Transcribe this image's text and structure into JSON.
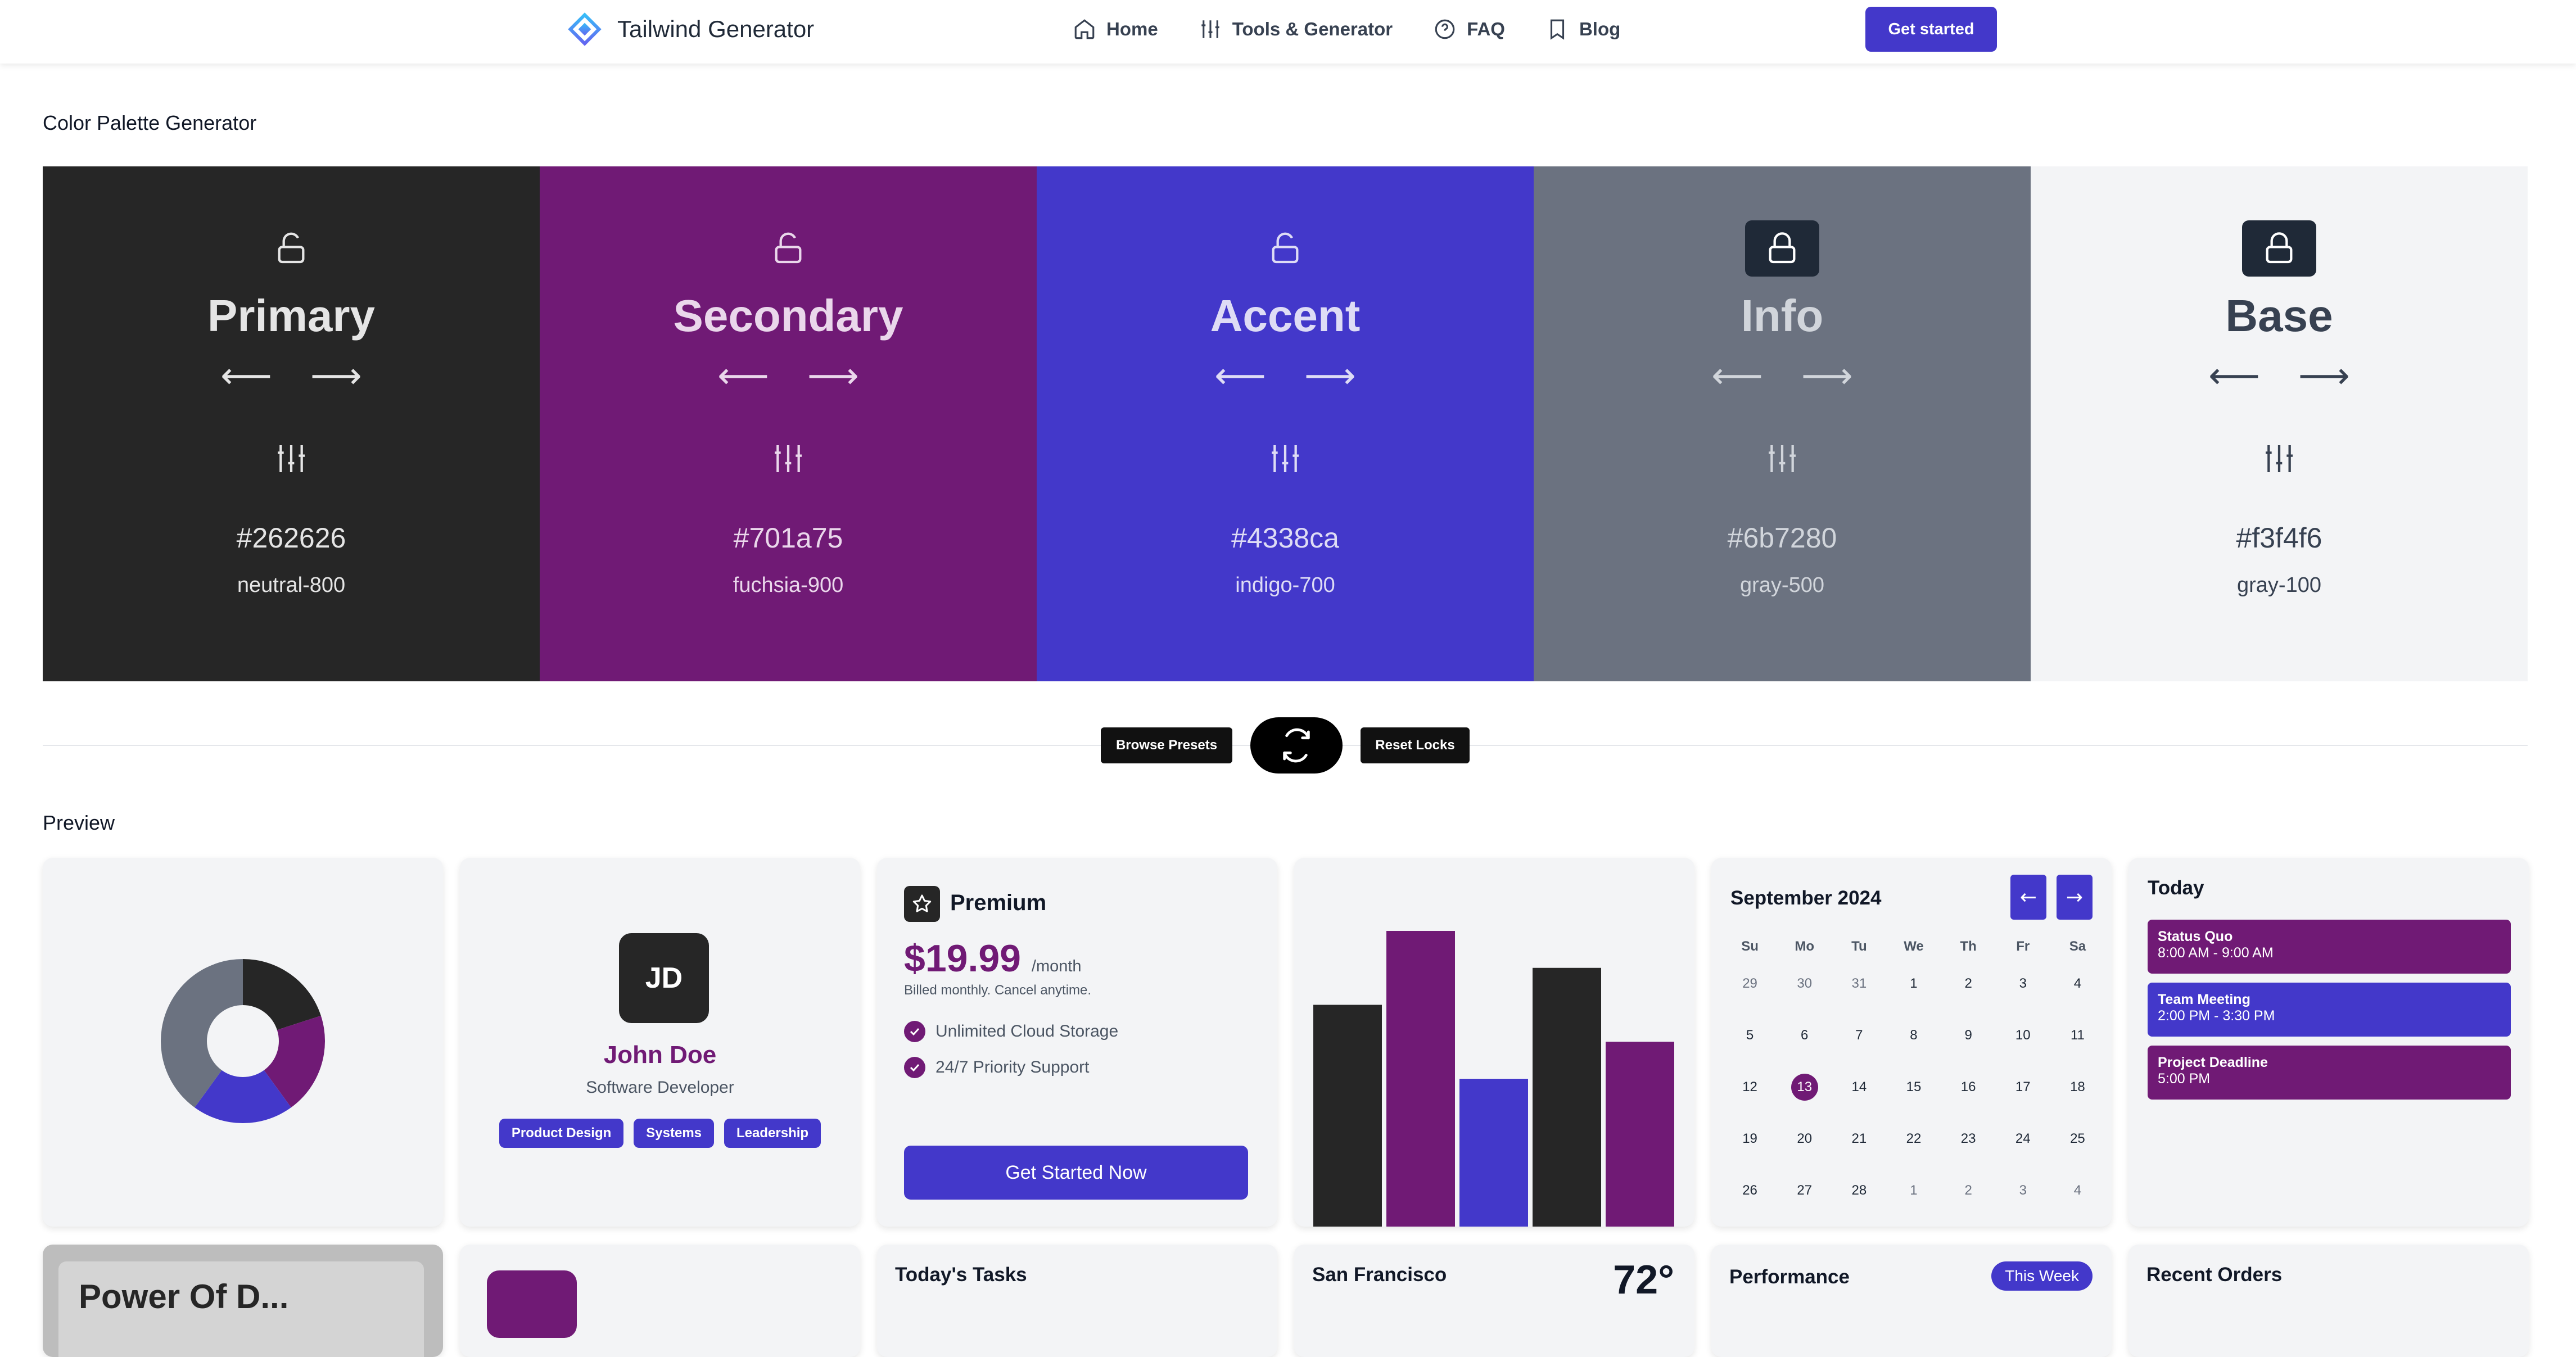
{
  "nav": {
    "brand": "Tailwind Generator",
    "links": [
      "Home",
      "Tools & Generator",
      "FAQ",
      "Blog"
    ],
    "cta": "Get started"
  },
  "palette_section": {
    "title": "Color Palette Generator",
    "swatches": [
      {
        "name": "Primary",
        "hex": "#262626",
        "tw": "neutral-800",
        "bg": "#262626",
        "fg": "#e5e5e5",
        "locked": false
      },
      {
        "name": "Secondary",
        "hex": "#701a75",
        "tw": "fuchsia-900",
        "bg": "#701a75",
        "fg": "#ead7eb",
        "locked": false
      },
      {
        "name": "Accent",
        "hex": "#4338ca",
        "tw": "indigo-700",
        "bg": "#4338ca",
        "fg": "#dedcf5",
        "locked": false
      },
      {
        "name": "Info",
        "hex": "#6b7280",
        "tw": "gray-500",
        "bg": "#6b7280",
        "fg": "#d1d5db",
        "locked": true
      },
      {
        "name": "Base",
        "hex": "#f3f4f6",
        "tw": "gray-100",
        "bg": "#f3f4f6",
        "fg": "#374151",
        "locked": true
      }
    ]
  },
  "actions": {
    "browse": "Browse Presets",
    "reset": "Reset Locks"
  },
  "preview": {
    "title": "Preview",
    "profile": {
      "initials": "JD",
      "name": "John Doe",
      "role": "Software Developer",
      "tags": [
        "Product Design",
        "Systems",
        "Leadership"
      ]
    },
    "pricing": {
      "plan": "Premium",
      "price": "$19.99",
      "period": "/month",
      "billing": "Billed monthly. Cancel anytime.",
      "features": [
        "Unlimited Cloud Storage",
        "24/7 Priority Support"
      ],
      "cta": "Get Started Now"
    },
    "calendar": {
      "title": "September 2024",
      "prev": "←",
      "next": "→",
      "weekdays": [
        "Su",
        "Mo",
        "Tu",
        "We",
        "Th",
        "Fr",
        "Sa"
      ],
      "weeks": [
        [
          "29",
          "30",
          "31",
          "1",
          "2",
          "3",
          "4"
        ],
        [
          "5",
          "6",
          "7",
          "8",
          "9",
          "10",
          "11"
        ],
        [
          "12",
          "13",
          "14",
          "15",
          "16",
          "17",
          "18"
        ],
        [
          "19",
          "20",
          "21",
          "22",
          "23",
          "24",
          "25"
        ],
        [
          "26",
          "27",
          "28",
          "1",
          "2",
          "3",
          "4"
        ]
      ],
      "selected": "13"
    },
    "today": {
      "title": "Today",
      "events": [
        {
          "title": "Status Quo",
          "time": "8:00 AM - 9:00 AM",
          "color": "#701a75"
        },
        {
          "title": "Team Meeting",
          "time": "2:00 PM - 3:30 PM",
          "color": "#4338ca"
        },
        {
          "title": "Project Deadline",
          "time": "5:00 PM",
          "color": "#701a75"
        }
      ]
    },
    "tasks_title": "Today's Tasks",
    "weather": {
      "city": "San Francisco",
      "temp": "72°"
    },
    "performance": {
      "title": "Performance",
      "badge": "This Week"
    },
    "orders_title": "Recent Orders",
    "doc_card_text": "Power Of D..."
  },
  "chart_data": [
    {
      "type": "pie",
      "values": [
        20,
        20,
        20,
        40
      ],
      "colors": [
        "#262626",
        "#701a75",
        "#4338ca",
        "#6b7280"
      ],
      "donut": true
    },
    {
      "type": "bar",
      "values": [
        60,
        80,
        40,
        70,
        50
      ],
      "ylim": [
        0,
        80
      ],
      "colors": [
        "#262626",
        "#701a75",
        "#4338ca",
        "#262626",
        "#701a75"
      ]
    }
  ]
}
